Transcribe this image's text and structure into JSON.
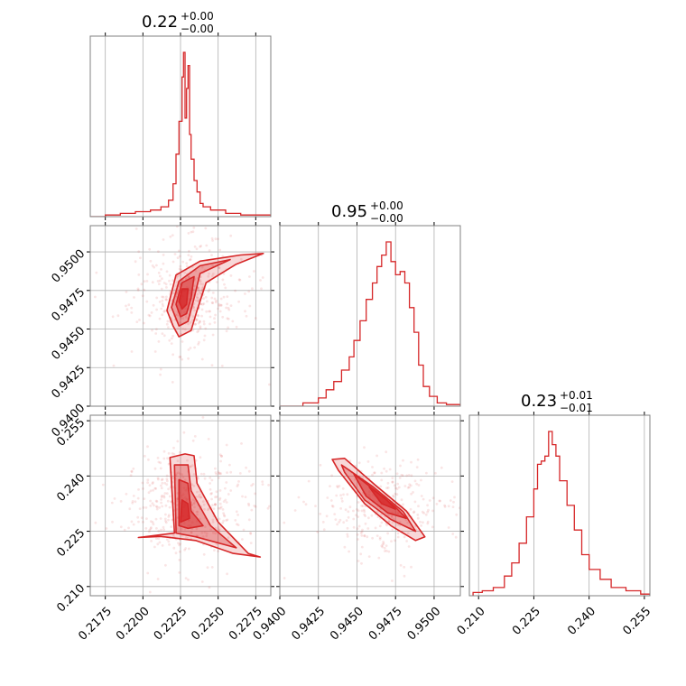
{
  "colors": {
    "main": "#d62728",
    "grid": "#b0b0b0",
    "frame": "#808080"
  },
  "chart_data": {
    "type": "corner",
    "parameters": [
      {
        "title": {
          "median": "0.22",
          "upper": "+0.00",
          "lower": "−0.00"
        }
      },
      {
        "title": {
          "median": "0.95",
          "upper": "+0.00",
          "lower": "−0.00"
        }
      },
      {
        "title": {
          "median": "0.23",
          "upper": "+0.01",
          "lower": "−0.01"
        }
      }
    ],
    "axes": {
      "p1": {
        "range": [
          0.2165,
          0.2285
        ],
        "ticks": [
          0.2175,
          0.22,
          0.2225,
          0.225,
          0.2275
        ],
        "tick_labels": [
          "0.2175",
          "0.2200",
          "0.2225",
          "0.2250",
          "0.2275"
        ]
      },
      "p2": {
        "range": [
          0.94,
          0.9517
        ],
        "ticks": [
          0.94,
          0.9425,
          0.945,
          0.9475,
          0.95
        ],
        "tick_labels": [
          "0.9400",
          "0.9425",
          "0.9450",
          "0.9475",
          "0.9500"
        ]
      },
      "p3": {
        "range": [
          0.2075,
          0.2565
        ],
        "ticks": [
          0.21,
          0.225,
          0.24,
          0.255
        ],
        "tick_labels": [
          "0.210",
          "0.225",
          "0.240",
          "0.255"
        ]
      }
    },
    "histograms": {
      "p1": {
        "x": [
          0.2165,
          0.2175,
          0.2185,
          0.2195,
          0.2205,
          0.2212,
          0.2217,
          0.222,
          0.2222,
          0.2224,
          0.2226,
          0.2227,
          0.2228,
          0.2229,
          0.223,
          0.2231,
          0.2232,
          0.2234,
          0.2236,
          0.2238,
          0.224,
          0.2245,
          0.2255,
          0.2265,
          0.2275,
          0.2285
        ],
        "counts": [
          0,
          1,
          2,
          3,
          4,
          6,
          10,
          20,
          38,
          58,
          85,
          100,
          60,
          78,
          92,
          50,
          35,
          22,
          15,
          8,
          6,
          4,
          2,
          1,
          1,
          0
        ]
      },
      "p2": {
        "x": [
          0.94,
          0.9415,
          0.9425,
          0.943,
          0.9435,
          0.944,
          0.9445,
          0.9448,
          0.9452,
          0.9456,
          0.946,
          0.9463,
          0.9466,
          0.9469,
          0.9472,
          0.9475,
          0.9478,
          0.9481,
          0.9484,
          0.9487,
          0.949,
          0.9493,
          0.9497,
          0.9502,
          0.9508,
          0.9517
        ],
        "counts": [
          0,
          2,
          5,
          10,
          15,
          22,
          30,
          40,
          52,
          65,
          75,
          85,
          92,
          100,
          88,
          80,
          82,
          75,
          60,
          45,
          25,
          12,
          6,
          2,
          1,
          0
        ]
      },
      "p3": {
        "x": [
          0.2085,
          0.211,
          0.214,
          0.217,
          0.219,
          0.221,
          0.223,
          0.225,
          0.226,
          0.227,
          0.228,
          0.229,
          0.23,
          0.231,
          0.232,
          0.234,
          0.236,
          0.238,
          0.24,
          0.243,
          0.246,
          0.25,
          0.254,
          0.2565
        ],
        "counts": [
          2,
          3,
          5,
          12,
          20,
          32,
          48,
          65,
          80,
          82,
          85,
          100,
          92,
          85,
          70,
          55,
          40,
          25,
          16,
          10,
          5,
          3,
          1,
          1
        ]
      }
    },
    "contours": {
      "p1_p2": [
        [
          [
            0.2216,
            0.9462
          ],
          [
            0.2222,
            0.9485
          ],
          [
            0.2238,
            0.9494
          ],
          [
            0.2265,
            0.9498
          ],
          [
            0.228,
            0.9499
          ],
          [
            0.2262,
            0.9492
          ],
          [
            0.2242,
            0.948
          ],
          [
            0.2236,
            0.9462
          ],
          [
            0.2232,
            0.9449
          ],
          [
            0.2224,
            0.9445
          ],
          [
            0.222,
            0.9452
          ]
        ],
        [
          [
            0.2219,
            0.9464
          ],
          [
            0.2224,
            0.9481
          ],
          [
            0.2238,
            0.9491
          ],
          [
            0.2258,
            0.9495
          ],
          [
            0.2238,
            0.9486
          ],
          [
            0.2234,
            0.947
          ],
          [
            0.223,
            0.9455
          ],
          [
            0.2224,
            0.9452
          ]
        ],
        [
          [
            0.2222,
            0.9466
          ],
          [
            0.2226,
            0.948
          ],
          [
            0.2234,
            0.9484
          ],
          [
            0.2232,
            0.947
          ],
          [
            0.2229,
            0.946
          ],
          [
            0.2225,
            0.9458
          ]
        ],
        [
          [
            0.2224,
            0.9468
          ],
          [
            0.2226,
            0.9476
          ],
          [
            0.223,
            0.9476
          ],
          [
            0.2229,
            0.9466
          ],
          [
            0.2226,
            0.9463
          ]
        ]
      ],
      "p1_p3": [
        [
          [
            0.2221,
            0.2245
          ],
          [
            0.2218,
            0.245
          ],
          [
            0.2228,
            0.246
          ],
          [
            0.2234,
            0.2455
          ],
          [
            0.2236,
            0.238
          ],
          [
            0.225,
            0.2275
          ],
          [
            0.227,
            0.219
          ],
          [
            0.2278,
            0.218
          ],
          [
            0.226,
            0.219
          ],
          [
            0.2235,
            0.2225
          ],
          [
            0.2212,
            0.2236
          ],
          [
            0.2197,
            0.2233
          ]
        ],
        [
          [
            0.2222,
            0.2255
          ],
          [
            0.2221,
            0.243
          ],
          [
            0.223,
            0.243
          ],
          [
            0.2232,
            0.236
          ],
          [
            0.2245,
            0.2265
          ],
          [
            0.2262,
            0.2205
          ],
          [
            0.2235,
            0.2235
          ],
          [
            0.2222,
            0.2245
          ]
        ],
        [
          [
            0.2224,
            0.2265
          ],
          [
            0.2224,
            0.239
          ],
          [
            0.223,
            0.238
          ],
          [
            0.2232,
            0.2305
          ],
          [
            0.224,
            0.2265
          ],
          [
            0.223,
            0.2258
          ]
        ],
        [
          [
            0.2225,
            0.2275
          ],
          [
            0.2226,
            0.2335
          ],
          [
            0.223,
            0.2325
          ],
          [
            0.2231,
            0.2285
          ]
        ]
      ],
      "p2_p3": [
        [
          [
            0.9434,
            0.2445
          ],
          [
            0.9442,
            0.2448
          ],
          [
            0.9462,
            0.2375
          ],
          [
            0.9482,
            0.2305
          ],
          [
            0.9494,
            0.2235
          ],
          [
            0.9488,
            0.2225
          ],
          [
            0.9472,
            0.2265
          ],
          [
            0.9455,
            0.2325
          ],
          [
            0.9438,
            0.2415
          ]
        ],
        [
          [
            0.944,
            0.243
          ],
          [
            0.946,
            0.2372
          ],
          [
            0.948,
            0.2303
          ],
          [
            0.9488,
            0.225
          ],
          [
            0.9472,
            0.2282
          ],
          [
            0.9455,
            0.2335
          ],
          [
            0.9442,
            0.241
          ]
        ],
        [
          [
            0.9448,
            0.2405
          ],
          [
            0.9462,
            0.236
          ],
          [
            0.9475,
            0.2315
          ],
          [
            0.9482,
            0.2285
          ],
          [
            0.947,
            0.23
          ],
          [
            0.9456,
            0.2345
          ]
        ],
        [
          [
            0.9458,
            0.237
          ],
          [
            0.9468,
            0.234
          ],
          [
            0.9475,
            0.231
          ],
          [
            0.9466,
            0.2325
          ]
        ]
      ]
    },
    "scatter": {
      "p1_p2": {
        "center": [
          0.223,
          0.9472
        ],
        "spread": [
          0.0018,
          0.0016
        ],
        "count": 420
      },
      "p1_p3": {
        "center": [
          0.2228,
          0.232
        ],
        "spread": [
          0.0018,
          0.0065
        ],
        "count": 420
      },
      "p2_p3": {
        "center": [
          0.9468,
          0.2315
        ],
        "spread": [
          0.0018,
          0.006
        ],
        "count": 320
      }
    },
    "grid": true
  }
}
